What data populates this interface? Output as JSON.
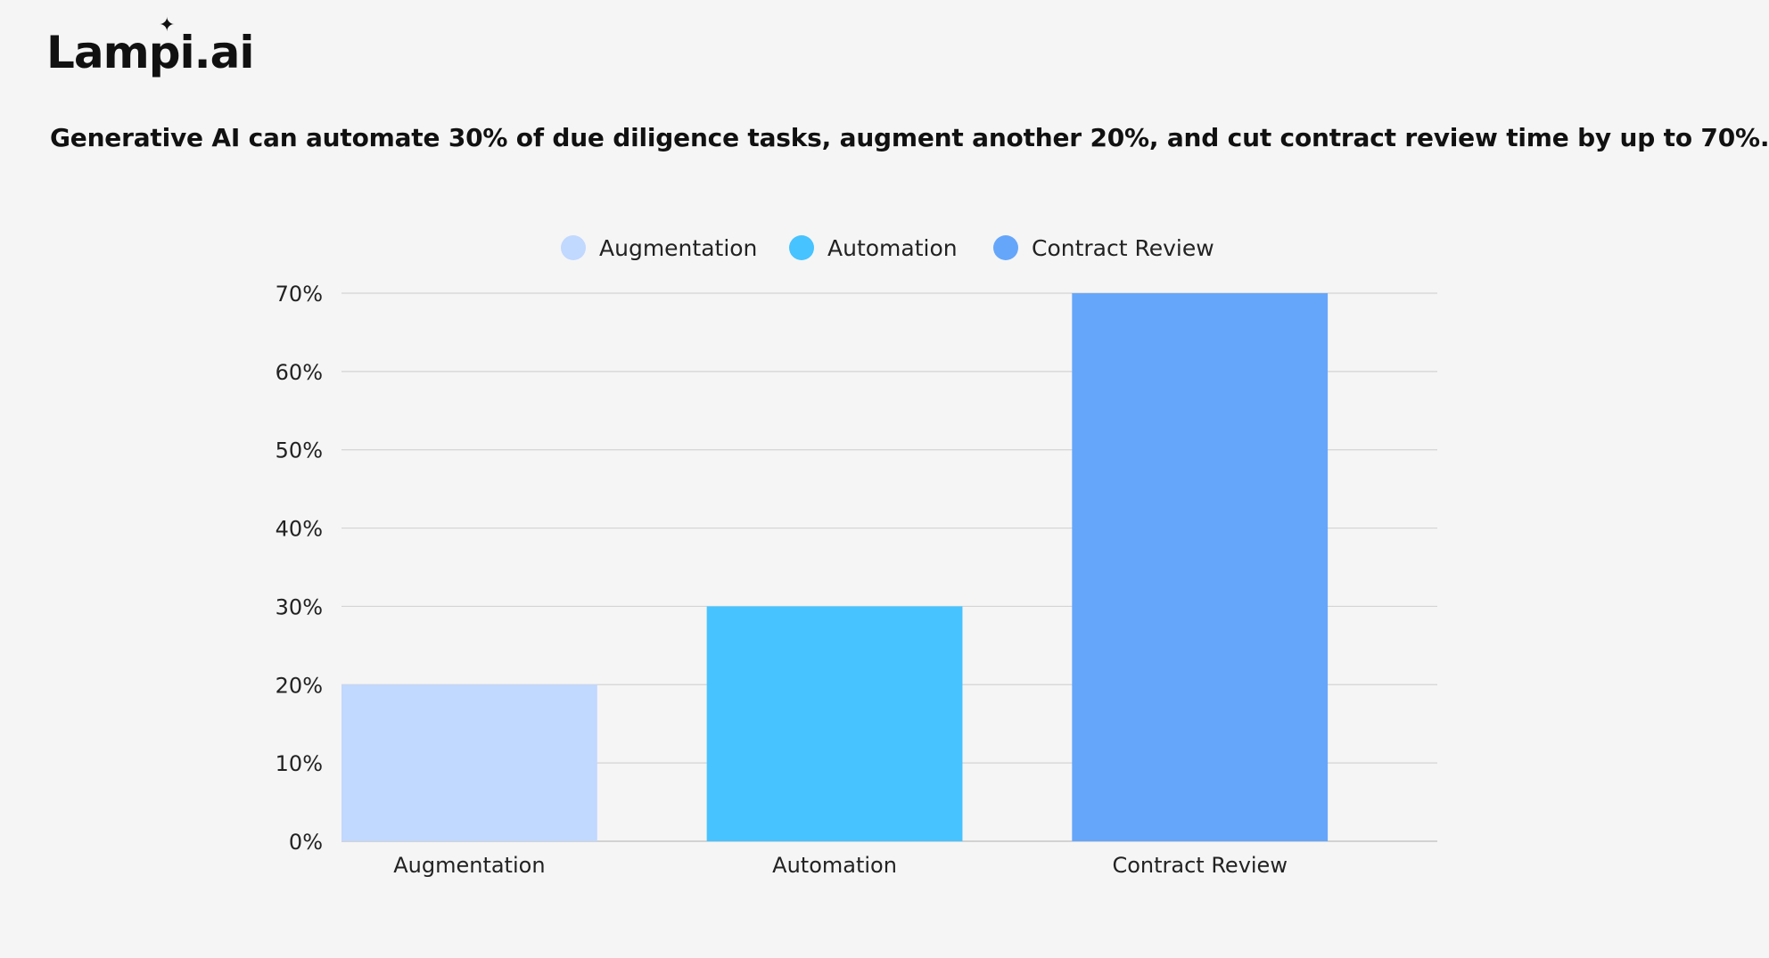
{
  "brand": {
    "logo_text": "Lampi.ai"
  },
  "headline": "Generative AI can automate 30% of due diligence tasks, augment another 20%, and cut contract review time by up to 70%.",
  "chart_data": {
    "type": "bar",
    "title": "",
    "xlabel": "",
    "ylabel": "",
    "categories": [
      "Augmentation",
      "Automation",
      "Contract Review"
    ],
    "values": [
      20,
      30,
      70
    ],
    "colors": [
      "#c1d8ff",
      "#47c3ff",
      "#65a6fb"
    ],
    "legend": [
      {
        "label": "Augmentation",
        "color": "#c1d8ff"
      },
      {
        "label": "Automation",
        "color": "#47c3ff"
      },
      {
        "label": "Contract Review",
        "color": "#65a6fb"
      }
    ],
    "legend_position": "top-center",
    "ylim": [
      0,
      70
    ],
    "yticks": [
      0,
      10,
      20,
      30,
      40,
      50,
      60,
      70
    ],
    "ytick_labels": [
      "0%",
      "10%",
      "20%",
      "30%",
      "40%",
      "50%",
      "60%",
      "70%"
    ],
    "grid": true
  }
}
